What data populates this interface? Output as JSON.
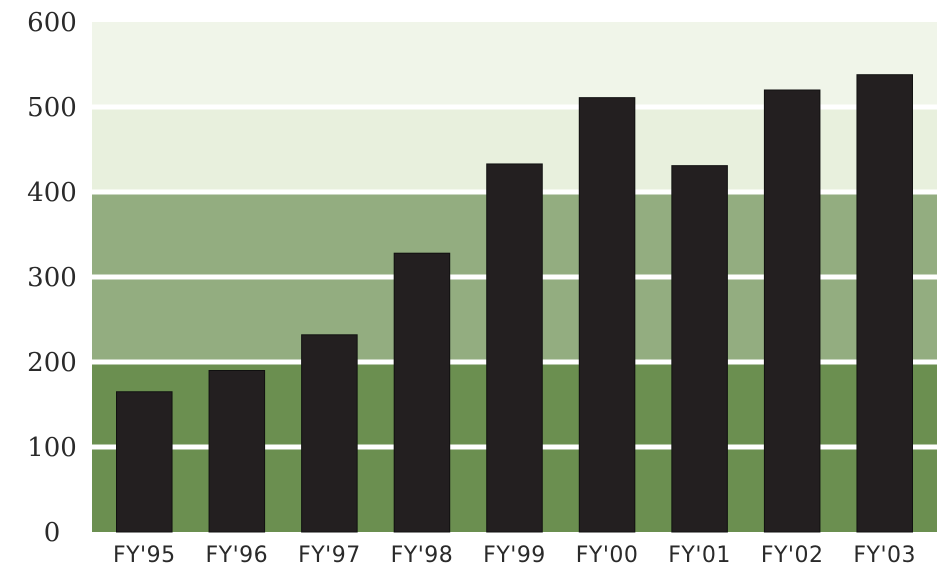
{
  "chart_data": {
    "type": "bar",
    "categories": [
      "FY'95",
      "FY'96",
      "FY'97",
      "FY'98",
      "FY'99",
      "FY'00",
      "FY'01",
      "FY'02",
      "FY'03"
    ],
    "values": [
      165,
      190,
      232,
      328,
      433,
      511,
      431,
      520,
      538
    ],
    "title": "",
    "xlabel": "",
    "ylabel": "",
    "ylim": [
      0,
      600
    ],
    "yticks": [
      "0",
      "100",
      "200",
      "300",
      "400",
      "500",
      "600"
    ],
    "grid": true,
    "bar_color": "#231f20",
    "band_colors": [
      "#6b8f50",
      "#6b8f50",
      "#93ad80",
      "#93ad80",
      "#e8f0dd",
      "#f0f5e9"
    ]
  }
}
